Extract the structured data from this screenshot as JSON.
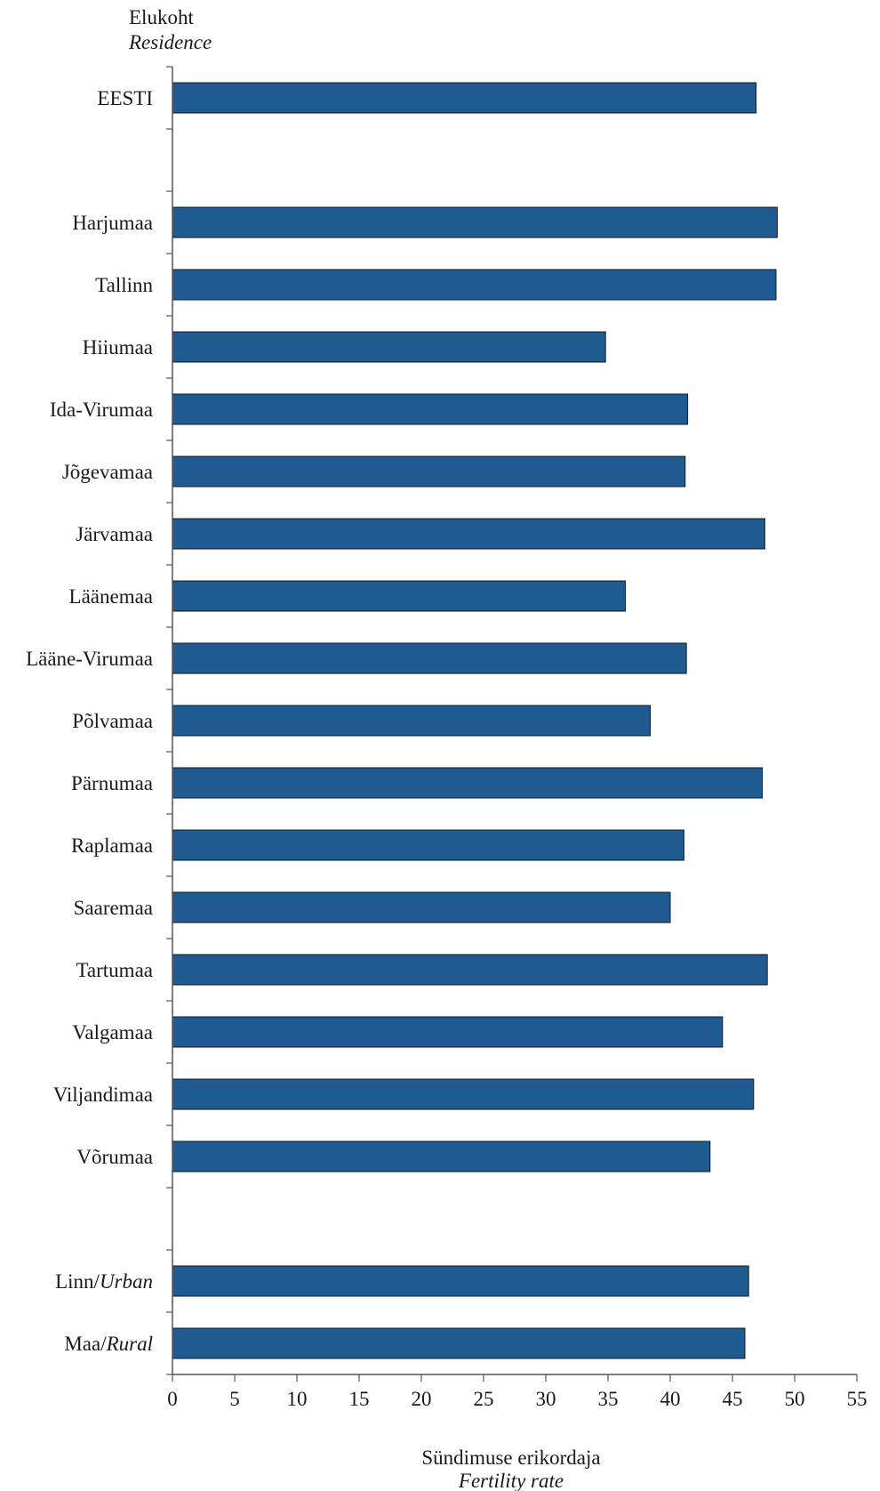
{
  "colors": {
    "bar": "#1f5a91",
    "bar_stroke": "#0d1b2a",
    "axis": "#555555",
    "text": "#1a1a1a"
  },
  "y_title": "Elukoht",
  "y_title_en": "Residence",
  "x_title": "Sündimuse erikordaja",
  "x_title_en": "Fertility rate",
  "chart_data": {
    "type": "bar",
    "orientation": "horizontal",
    "title": "",
    "ylabel": "Elukoht / Residence",
    "xlabel": "Sündimuse erikordaja / Fertility rate",
    "xlim": [
      0,
      55
    ],
    "xticks": [
      "0",
      "5",
      "10",
      "15",
      "20",
      "25",
      "30",
      "35",
      "40",
      "45",
      "50",
      "55"
    ],
    "grid": false,
    "categories": [
      "EESTI",
      "",
      "Harjumaa",
      "Tallinn",
      "Hiiumaa",
      "Ida-Virumaa",
      "Jõgevamaa",
      "Järvamaa",
      "Läänemaa",
      "Lääne-Virumaa",
      "Põlvamaa",
      "Pärnumaa",
      "Raplamaa",
      "Saaremaa",
      "Tartumaa",
      "Valgamaa",
      "Viljandimaa",
      "Võrumaa",
      "",
      "Linn/Urban",
      "Maa/Rural"
    ],
    "category_parts": [
      [
        "EESTI",
        ""
      ],
      [
        "",
        ""
      ],
      [
        "Harjumaa",
        ""
      ],
      [
        "Tallinn",
        ""
      ],
      [
        "Hiiumaa",
        ""
      ],
      [
        "Ida-Virumaa",
        ""
      ],
      [
        "Jõgevamaa",
        ""
      ],
      [
        "Järvamaa",
        ""
      ],
      [
        "Läänemaa",
        ""
      ],
      [
        "Lääne-Virumaa",
        ""
      ],
      [
        "Põlvamaa",
        ""
      ],
      [
        "Pärnumaa",
        ""
      ],
      [
        "Raplamaa",
        ""
      ],
      [
        "Saaremaa",
        ""
      ],
      [
        "Tartumaa",
        ""
      ],
      [
        "Valgamaa",
        ""
      ],
      [
        "Viljandimaa",
        ""
      ],
      [
        "Võrumaa",
        ""
      ],
      [
        "",
        ""
      ],
      [
        "Linn/",
        "Urban"
      ],
      [
        "Maa/",
        "Rural"
      ]
    ],
    "values": [
      46.9,
      null,
      48.6,
      48.5,
      34.8,
      41.4,
      41.2,
      47.6,
      36.4,
      41.3,
      38.4,
      47.4,
      41.1,
      40.0,
      47.8,
      44.2,
      46.7,
      43.2,
      null,
      46.3,
      46.0
    ]
  }
}
